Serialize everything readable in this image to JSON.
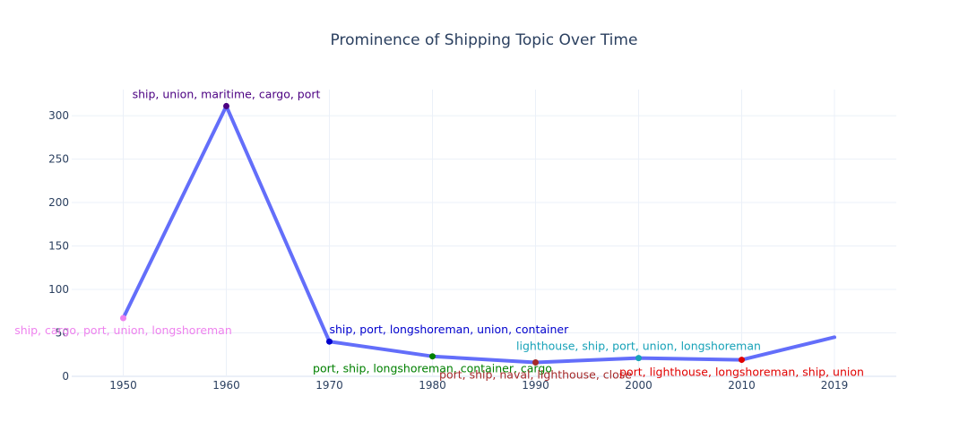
{
  "chart_data": {
    "type": "line",
    "title": "Prominence of Shipping Topic Over Time",
    "xlabel": "",
    "ylabel": "",
    "x": [
      "1950",
      "1960",
      "1970",
      "1980",
      "1990",
      "2000",
      "2010",
      "2019"
    ],
    "xlim": [
      1945,
      2025
    ],
    "ylim": [
      0,
      330
    ],
    "y_ticks": [
      0,
      50,
      100,
      150,
      200,
      250,
      300
    ],
    "grid": true,
    "legend": "none",
    "line_color": "#636efa",
    "series": [
      {
        "values": [
          67,
          311,
          40,
          23,
          16,
          21,
          19,
          45
        ]
      }
    ],
    "points": [
      {
        "x": "1950",
        "y": 67,
        "label": "ship, cargo, port, union, longshoreman",
        "color": "#ee82ee",
        "label_pos": "below"
      },
      {
        "x": "1960",
        "y": 311,
        "label": "ship, union, maritime, cargo, port",
        "color": "#4b0082",
        "label_pos": "above"
      },
      {
        "x": "1970",
        "y": 40,
        "label": "ship, port, longshoreman, union, container",
        "color": "#0000cd",
        "label_pos": "above-right"
      },
      {
        "x": "1980",
        "y": 23,
        "label": "port, ship, longshoreman, container, cargo",
        "color": "#008000",
        "label_pos": "below"
      },
      {
        "x": "1990",
        "y": 16,
        "label": "port, ship, naval, lighthouse, close",
        "color": "#a52a2a",
        "label_pos": "below"
      },
      {
        "x": "2000",
        "y": 21,
        "label": "lighthouse, ship, port, union, longshoreman",
        "color": "#17a2b8",
        "label_pos": "above"
      },
      {
        "x": "2010",
        "y": 19,
        "label": "port, lighthouse, longshoreman, ship, union",
        "color": "#e00000",
        "label_pos": "below"
      }
    ]
  }
}
